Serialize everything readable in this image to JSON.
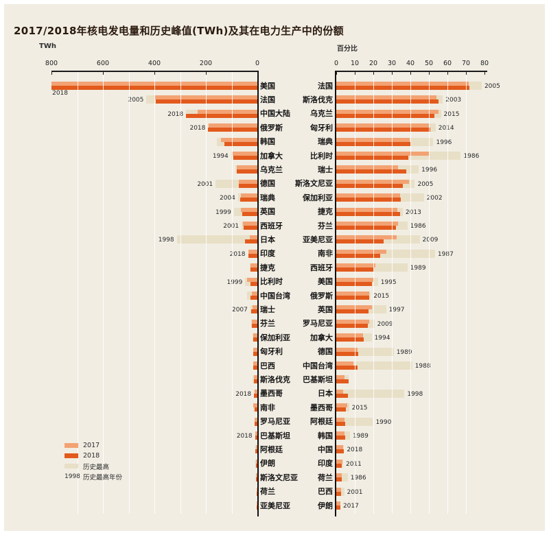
{
  "title": "2017/2018年核电发电量和历史峰值(TWh)及其在电力生产中的份额",
  "chart_data": [
    {
      "type": "bar",
      "orientation": "horizontal-right-anchored",
      "axis_label": "TWh",
      "xlim": [
        800,
        0
      ],
      "tick_labels": [
        800,
        600,
        400,
        200,
        0
      ],
      "grid_step": 100,
      "categories": [
        "美国",
        "法国",
        "中国大陆",
        "俄罗斯",
        "韩国",
        "加拿大",
        "乌克兰",
        "德国",
        "瑞典",
        "英国",
        "西班牙",
        "日本",
        "印度",
        "捷克",
        "比利时",
        "中国台湾",
        "瑞士",
        "芬兰",
        "保加利亚",
        "匈牙利",
        "巴西",
        "斯洛伐克",
        "墨西哥",
        "南非",
        "罗马尼亚",
        "巴基斯坦",
        "阿根廷",
        "伊朗",
        "斯洛文尼亚",
        "荷兰",
        "亚美尼亚"
      ],
      "series": [
        {
          "name": "2017",
          "values": [
            805,
            398,
            233,
            190,
            141,
            95,
            80,
            72,
            63,
            64,
            56,
            29,
            35,
            27,
            40,
            22,
            20,
            22,
            15,
            15,
            15,
            14,
            11,
            15,
            11,
            8,
            6,
            6,
            6,
            3,
            2
          ]
        },
        {
          "name": "2018",
          "values": [
            808,
            396,
            277,
            191,
            127,
            94,
            80,
            72,
            66,
            59,
            53,
            49,
            35,
            28,
            27,
            27,
            25,
            22,
            15,
            15,
            15,
            14,
            13,
            11,
            11,
            9,
            7,
            6,
            6,
            3,
            2
          ]
        },
        {
          "name": "历史最高",
          "values": [
            812,
            431,
            277,
            191,
            157,
            102,
            85,
            162,
            75,
            91,
            61,
            313,
            36,
            29,
            47,
            40,
            27,
            23,
            19,
            16,
            16,
            18,
            13,
            15,
            12,
            9,
            7,
            7,
            6,
            4,
            3
          ]
        }
      ],
      "peak_year_labels": [
        "2018",
        "2005",
        "2018",
        "2018",
        null,
        "1994",
        null,
        "2001",
        "2004",
        "1999",
        "2001",
        "1998",
        "2018",
        null,
        "1999",
        null,
        "2007",
        null,
        null,
        null,
        null,
        null,
        "2018",
        null,
        null,
        "2018",
        null,
        null,
        null,
        null,
        null
      ]
    },
    {
      "type": "bar",
      "orientation": "horizontal-left-anchored",
      "axis_label": "百分比",
      "xlim": [
        0,
        80
      ],
      "tick_labels": [
        0,
        10,
        20,
        30,
        40,
        50,
        60,
        70,
        80
      ],
      "grid_step": 10,
      "categories": [
        "法国",
        "斯洛伐克",
        "乌克兰",
        "匈牙利",
        "瑞典",
        "比利时",
        "瑞士",
        "斯洛文尼亚",
        "保加利亚",
        "捷克",
        "芬兰",
        "亚美尼亚",
        "南非",
        "西班牙",
        "美国",
        "俄罗斯",
        "英国",
        "罗马尼亚",
        "加拿大",
        "德国",
        "中国台湾",
        "巴基斯坦",
        "日本",
        "墨西哥",
        "阿根廷",
        "韩国",
        "中国",
        "印度",
        "荷兰",
        "巴西",
        "伊朗"
      ],
      "series": [
        {
          "name": "2017",
          "values": [
            71.6,
            54.0,
            55.1,
            50.0,
            39.6,
            49.9,
            33.4,
            39.1,
            34.3,
            33.1,
            33.2,
            32.5,
            27.1,
            21.2,
            20.0,
            17.8,
            19.3,
            17.7,
            14.6,
            11.6,
            9.3,
            4.6,
            3.6,
            6.0,
            4.5,
            4.3,
            3.8,
            3.2,
            2.9,
            2.6,
            2.2
          ]
        },
        {
          "name": "2018",
          "values": [
            71.7,
            55.0,
            53.0,
            50.6,
            40.3,
            39.0,
            37.7,
            35.9,
            34.7,
            34.5,
            32.4,
            25.6,
            23.7,
            20.4,
            19.3,
            17.9,
            17.3,
            17.2,
            14.9,
            11.8,
            11.4,
            6.8,
            6.2,
            5.3,
            4.7,
            4.7,
            4.2,
            3.1,
            3.0,
            2.7,
            2.1
          ]
        },
        {
          "name": "历史最高",
          "values": [
            78.5,
            57.5,
            56.5,
            53.6,
            52.4,
            67.2,
            44.5,
            42.4,
            47.3,
            35.9,
            38.4,
            45.0,
            53.3,
            38.4,
            22.5,
            18.6,
            26.9,
            20.6,
            19.1,
            31.0,
            41.0,
            6.8,
            36.8,
            6.9,
            19.8,
            7.4,
            4.2,
            3.7,
            6.2,
            4.3,
            2.2
          ]
        }
      ],
      "peak_year_labels": [
        "2005",
        "2003",
        "2015",
        "2014",
        "1996",
        "1986",
        "1996",
        "2005",
        "2002",
        "2013",
        "1986",
        "2009",
        "1987",
        "1989",
        "1995",
        "2015",
        "1997",
        "2009",
        "1994",
        "1989",
        "1988",
        null,
        "1998",
        "2015",
        "1990",
        "1989",
        "2018",
        "2011",
        "1986",
        "2001",
        "2017"
      ]
    }
  ],
  "legend": {
    "items": [
      {
        "label": "2017"
      },
      {
        "label": "2018"
      },
      {
        "label": "历史最高"
      }
    ],
    "note_year": "1998",
    "note_text": "历史最高年份"
  },
  "colors": {
    "bar_2017": "#f3a273",
    "bar_2018": "#e25a1c",
    "bar_peak": "#e8dfc7",
    "background": "#f1ede3",
    "axis": "#1a1a1a",
    "text": "#141414"
  }
}
